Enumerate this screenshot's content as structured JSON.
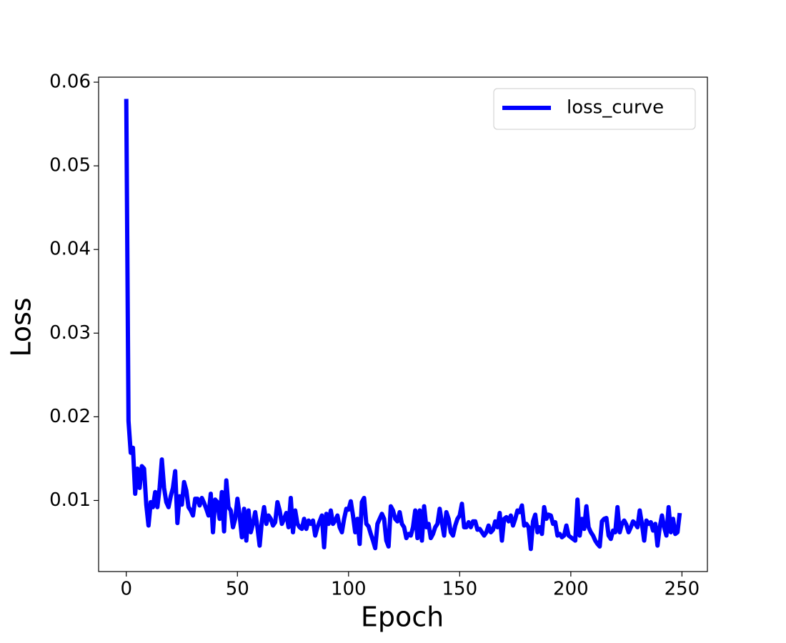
{
  "chart_data": {
    "type": "line",
    "xlabel": "Epoch",
    "ylabel": "Loss",
    "x": [
      0,
      1,
      2,
      3,
      4,
      5,
      6,
      7,
      8,
      9,
      10,
      11,
      12,
      13,
      14,
      15,
      16,
      17,
      18,
      19,
      20,
      21,
      22,
      23,
      24,
      25,
      26,
      27,
      28,
      29,
      30,
      31,
      32,
      33,
      34,
      35,
      36,
      37,
      38,
      39,
      40,
      41,
      42,
      43,
      44,
      45,
      46,
      47,
      48,
      49,
      50,
      51,
      52,
      53,
      54,
      55,
      56,
      57,
      58,
      59,
      60,
      61,
      62,
      63,
      64,
      65,
      66,
      67,
      68,
      69,
      70,
      71,
      72,
      73,
      74,
      75,
      76,
      77,
      78,
      79,
      80,
      81,
      82,
      83,
      84,
      85,
      86,
      87,
      88,
      89,
      90,
      91,
      92,
      93,
      94,
      95,
      96,
      97,
      98,
      99,
      100,
      101,
      102,
      103,
      104,
      105,
      106,
      107,
      108,
      109,
      110,
      111,
      112,
      113,
      114,
      115,
      116,
      117,
      118,
      119,
      120,
      121,
      122,
      123,
      124,
      125,
      126,
      127,
      128,
      129,
      130,
      131,
      132,
      133,
      134,
      135,
      136,
      137,
      138,
      139,
      140,
      141,
      142,
      143,
      144,
      145,
      146,
      147,
      148,
      149,
      150,
      151,
      152,
      153,
      154,
      155,
      156,
      157,
      158,
      159,
      160,
      161,
      162,
      163,
      164,
      165,
      166,
      167,
      168,
      169,
      170,
      171,
      172,
      173,
      174,
      175,
      176,
      177,
      178,
      179,
      180,
      181,
      182,
      183,
      184,
      185,
      186,
      187,
      188,
      189,
      190,
      191,
      192,
      193,
      194,
      195,
      196,
      197,
      198,
      199,
      200,
      201,
      202,
      203,
      204,
      205,
      206,
      207,
      208,
      209,
      210,
      211,
      212,
      213,
      214,
      215,
      216,
      217,
      218,
      219,
      220,
      221,
      222,
      223,
      224,
      225,
      226,
      227,
      228,
      229,
      230,
      231,
      232,
      233,
      234,
      235,
      236,
      237,
      238,
      239,
      240,
      241,
      242,
      243,
      244,
      245,
      246,
      247,
      248,
      249
    ],
    "series": [
      {
        "name": "loss_curve",
        "color": "#0000ff",
        "values": [
          0.058,
          0.0195,
          0.0157,
          0.0163,
          0.0108,
          0.0138,
          0.0115,
          0.0141,
          0.0138,
          0.0095,
          0.007,
          0.0098,
          0.0092,
          0.011,
          0.0092,
          0.0115,
          0.0149,
          0.0115,
          0.0098,
          0.0092,
          0.0105,
          0.0115,
          0.0135,
          0.0073,
          0.0105,
          0.0095,
          0.0122,
          0.0112,
          0.0092,
          0.0088,
          0.0082,
          0.0102,
          0.0102,
          0.0094,
          0.0103,
          0.0097,
          0.009,
          0.0082,
          0.0108,
          0.0062,
          0.0101,
          0.0098,
          0.0078,
          0.011,
          0.0063,
          0.0124,
          0.0092,
          0.0088,
          0.0068,
          0.0078,
          0.0102,
          0.0082,
          0.0056,
          0.009,
          0.0052,
          0.0088,
          0.0062,
          0.0072,
          0.0086,
          0.0068,
          0.0046,
          0.0075,
          0.0092,
          0.0072,
          0.0082,
          0.0078,
          0.007,
          0.0074,
          0.0098,
          0.0088,
          0.0072,
          0.0078,
          0.0085,
          0.0068,
          0.0103,
          0.0062,
          0.0088,
          0.0072,
          0.0068,
          0.0066,
          0.0078,
          0.0066,
          0.0076,
          0.0072,
          0.0076,
          0.0058,
          0.0068,
          0.0075,
          0.0082,
          0.0044,
          0.0084,
          0.0072,
          0.0088,
          0.0072,
          0.0076,
          0.0082,
          0.0068,
          0.0062,
          0.0078,
          0.009,
          0.0089,
          0.0099,
          0.0082,
          0.0062,
          0.0078,
          0.0048,
          0.0098,
          0.0103,
          0.0072,
          0.0069,
          0.006,
          0.0052,
          0.0043,
          0.0072,
          0.0078,
          0.0084,
          0.0078,
          0.0052,
          0.0045,
          0.0093,
          0.0088,
          0.0078,
          0.0075,
          0.0086,
          0.0072,
          0.0068,
          0.0055,
          0.006,
          0.0058,
          0.0068,
          0.0088,
          0.0055,
          0.0088,
          0.0052,
          0.0093,
          0.0068,
          0.0072,
          0.0055,
          0.006,
          0.0068,
          0.0072,
          0.009,
          0.0074,
          0.0058,
          0.0086,
          0.0078,
          0.0062,
          0.0058,
          0.007,
          0.0078,
          0.0082,
          0.0096,
          0.0068,
          0.0068,
          0.0074,
          0.0068,
          0.0075,
          0.0075,
          0.0065,
          0.0066,
          0.0062,
          0.0058,
          0.0062,
          0.007,
          0.0062,
          0.0065,
          0.0075,
          0.0068,
          0.0085,
          0.0052,
          0.0078,
          0.008,
          0.0075,
          0.0082,
          0.007,
          0.0078,
          0.0088,
          0.0086,
          0.0094,
          0.007,
          0.0072,
          0.0068,
          0.0042,
          0.0075,
          0.0083,
          0.0062,
          0.0068,
          0.006,
          0.0092,
          0.0078,
          0.0083,
          0.0082,
          0.0072,
          0.0074,
          0.0058,
          0.006,
          0.0056,
          0.0058,
          0.007,
          0.0058,
          0.0056,
          0.0054,
          0.0052,
          0.0101,
          0.0058,
          0.0078,
          0.0066,
          0.0093,
          0.0068,
          0.0062,
          0.0058,
          0.0052,
          0.0048,
          0.0045,
          0.0075,
          0.0078,
          0.0079,
          0.0058,
          0.0054,
          0.0064,
          0.0062,
          0.0092,
          0.0062,
          0.0072,
          0.0076,
          0.0071,
          0.0062,
          0.0068,
          0.0075,
          0.0072,
          0.0068,
          0.0088,
          0.0072,
          0.0052,
          0.0076,
          0.0072,
          0.0074,
          0.0064,
          0.0072,
          0.0046,
          0.0068,
          0.0082,
          0.0068,
          0.0058,
          0.0092,
          0.0062,
          0.0078,
          0.006,
          0.0062,
          0.0085
        ]
      }
    ],
    "xlim": [
      -12.45,
      261.45
    ],
    "xticks": [
      0,
      50,
      100,
      150,
      200,
      250
    ],
    "ylim": [
      0.0015,
      0.0606
    ],
    "yticks": [
      0.01,
      0.02,
      0.03,
      0.04,
      0.05,
      0.06
    ],
    "grid": false,
    "legend": "upper right"
  }
}
